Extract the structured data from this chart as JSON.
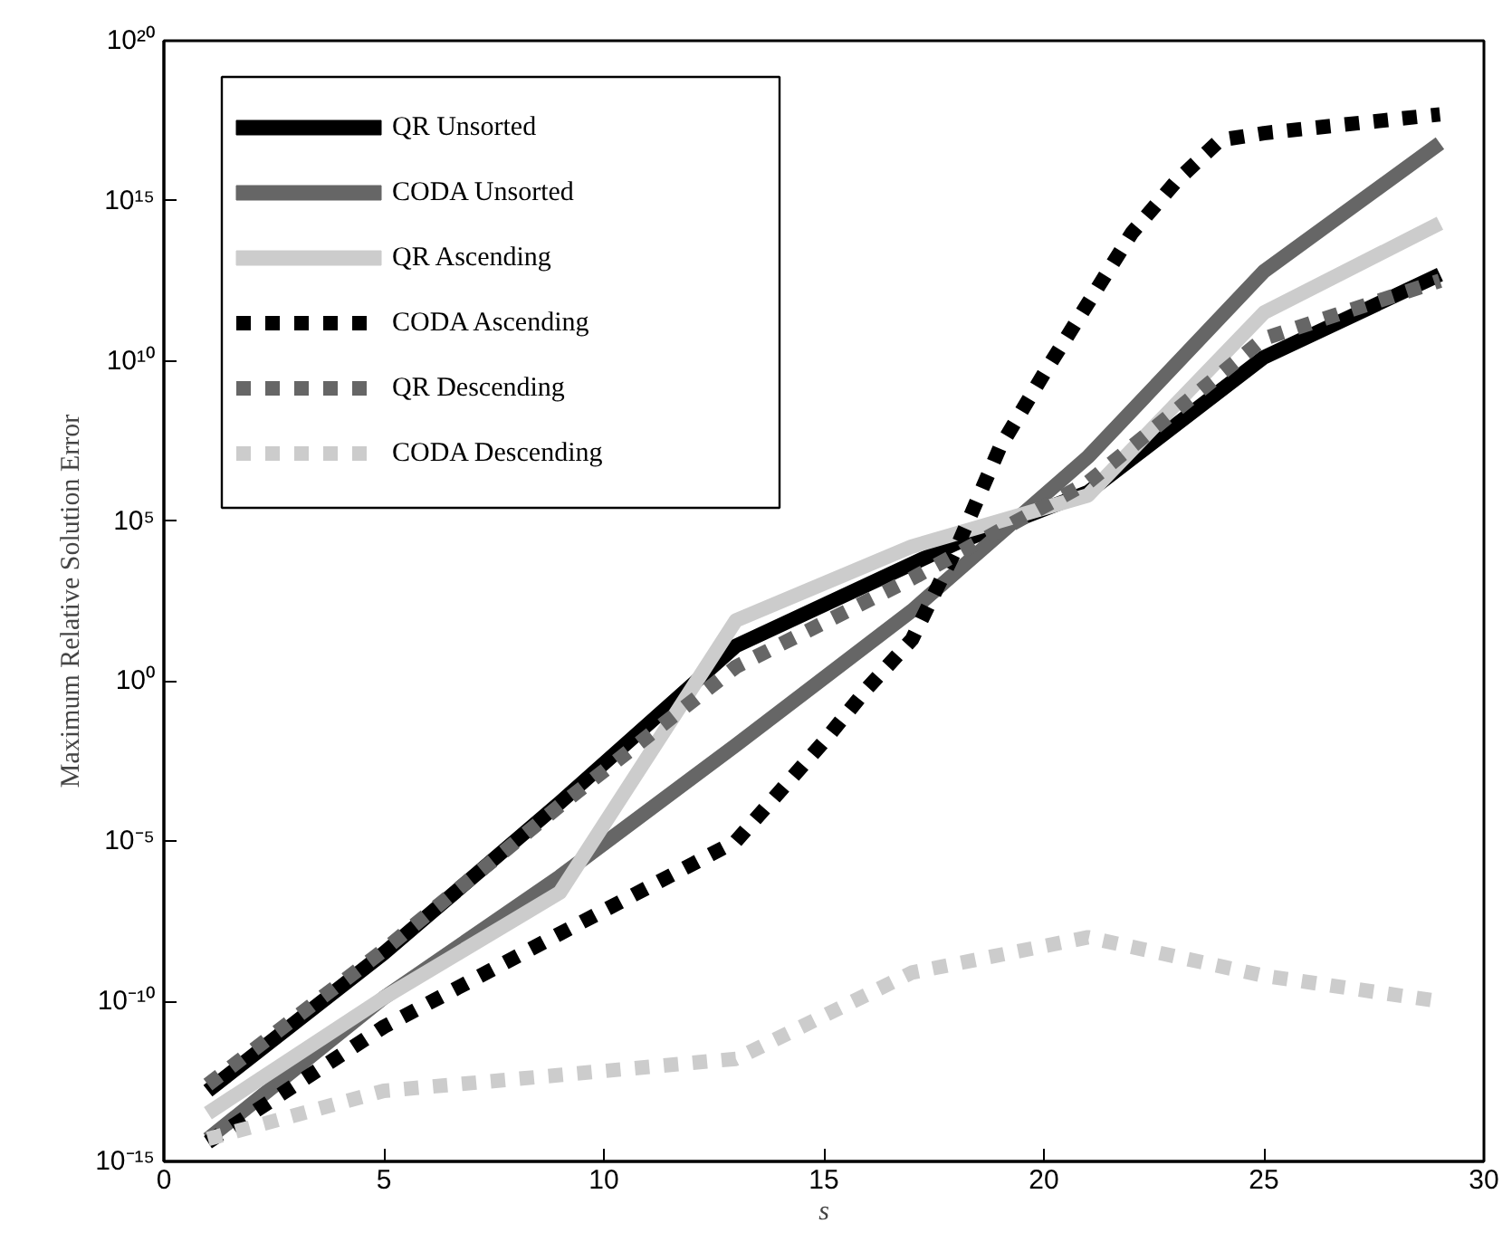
{
  "chart_data": {
    "type": "line",
    "xlabel": "s",
    "ylabel": "Maximum Relative Solution Error",
    "xlim": [
      0,
      30
    ],
    "xticks": [
      0,
      5,
      10,
      15,
      20,
      25,
      30
    ],
    "ylim": [
      1e-15,
      1e+20
    ],
    "log": "y",
    "yticks": [
      {
        "value": 1e-15,
        "label": "10⁻¹⁵"
      },
      {
        "value": 1e-10,
        "label": "10⁻¹⁰"
      },
      {
        "value": 1e-05,
        "label": "10⁻⁵"
      },
      {
        "value": 1,
        "label": "10⁰"
      },
      {
        "value": 100000.0,
        "label": "10⁵"
      },
      {
        "value": 10000000000.0,
        "label": "10¹⁰"
      },
      {
        "value": 1000000000000000.0,
        "label": "10¹⁵"
      },
      {
        "value": 1e+20,
        "label": "10²⁰"
      }
    ],
    "grid": false,
    "legend": "top left",
    "marker": "none",
    "x": [
      1,
      5,
      9,
      13,
      17,
      21,
      25,
      29
    ],
    "series": [
      {
        "name": "QR Unsorted",
        "color": "#000000",
        "line_style": "solid",
        "x": [
          1,
          5,
          9,
          13,
          18,
          21,
          25,
          29
        ],
        "values": [
          1.6e-13,
          3.2e-09,
          0.00016,
          12.6,
          20000.0,
          790000.0,
          13000000000.0,
          5000000000000.0
        ]
      },
      {
        "name": "CODA Unsorted",
        "color": "#666666",
        "line_style": "solid",
        "values": [
          5e-15,
          1.3e-10,
          7.9e-07,
          0.01,
          158,
          10000000.0,
          6300000000000.0,
          6.3e+16
        ]
      },
      {
        "name": "QR Ascending",
        "color": "#cccccc",
        "line_style": "solid",
        "values": [
          3.2e-14,
          1.3e-10,
          2.5e-07,
          79,
          16000.0,
          630000.0,
          320000000000.0,
          200000000000000.0
        ]
      },
      {
        "name": "CODA Ascending",
        "color": "#000000",
        "line_style": "dotted",
        "x": [
          1,
          5,
          9,
          13,
          15,
          16,
          17,
          18,
          19,
          20,
          21,
          22,
          23,
          24,
          25,
          29
        ],
        "values": [
          4e-15,
          1.6e-11,
          1.3e-08,
          1e-05,
          0.013,
          0.63,
          20,
          13000.0,
          20000000.0,
          4000000000.0,
          630000000000.0,
          100000000000000.0,
          4000000000000000.0,
          7.9e+16,
          1.3e+17,
          5e+17
        ]
      },
      {
        "name": "QR Descending",
        "color": "#666666",
        "line_style": "dotted",
        "values": [
          2.5e-13,
          4e-09,
          0.00013,
          2.8,
          1600,
          1600000.0,
          50000000000.0,
          3200000000000.0
        ]
      },
      {
        "name": "CODA Descending",
        "color": "#cccccc",
        "line_style": "dotted",
        "values": [
          5e-15,
          1.6e-13,
          5e-13,
          1.6e-12,
          7.9e-10,
          1e-08,
          6.3e-10,
          1e-10
        ]
      }
    ]
  }
}
